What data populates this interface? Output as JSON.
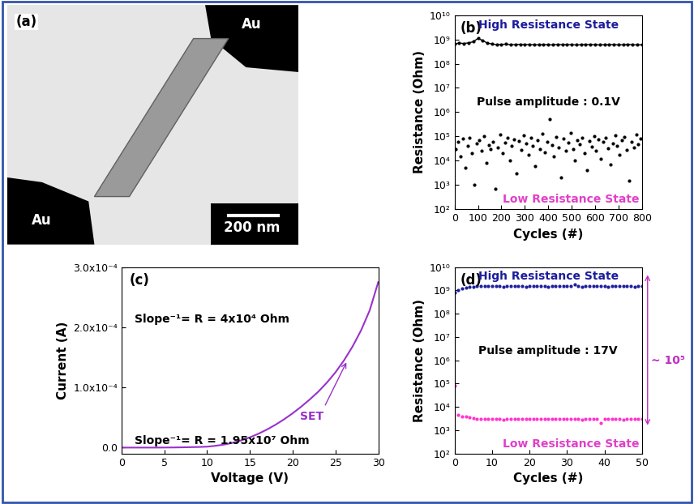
{
  "chart_data": [
    {
      "type": "image",
      "panel_label": "(a)",
      "annotations": [
        "Au",
        "Au",
        "200 nm"
      ]
    },
    {
      "type": "scatter",
      "panel_label": "(b)",
      "x_label": "Cycles (#)",
      "y_label": "Resistance (Ohm)",
      "log": "y",
      "xlim": [
        0,
        800
      ],
      "xticks": [
        0,
        100,
        200,
        300,
        400,
        500,
        600,
        700,
        800
      ],
      "ylim": [
        100,
        10000000000
      ],
      "yticks": [
        {
          "value": 100,
          "label": "10²"
        },
        {
          "value": 1000,
          "label": "10³"
        },
        {
          "value": 10000,
          "label": "10⁴"
        },
        {
          "value": 100000,
          "label": "10⁵"
        },
        {
          "value": 1000000,
          "label": "10⁶"
        },
        {
          "value": 10000000,
          "label": "10⁷"
        },
        {
          "value": 100000000,
          "label": "10⁸"
        },
        {
          "value": 1000000000,
          "label": "10⁹"
        },
        {
          "value": 10000000000,
          "label": "10¹⁰"
        }
      ],
      "annotations": [
        {
          "text": "High Resistance State",
          "color": "#1c1c9c"
        },
        {
          "text": "Pulse amplitude : 0.1V",
          "color": "#000000"
        },
        {
          "text": "Low Resistance State",
          "color": "#e040c8"
        }
      ],
      "series": [
        {
          "color": "#000000",
          "marker": "o",
          "line_style": "solid",
          "x": [
            0,
            20,
            40,
            60,
            80,
            100,
            120,
            140,
            160,
            180,
            200,
            220,
            240,
            260,
            280,
            300,
            320,
            340,
            360,
            380,
            400,
            420,
            440,
            460,
            480,
            500,
            520,
            540,
            560,
            580,
            600,
            620,
            640,
            660,
            680,
            700,
            720,
            740,
            760,
            780,
            800
          ],
          "values": [
            650000000,
            700000000,
            680000000,
            720000000,
            800000000,
            1100000000,
            900000000,
            700000000,
            650000000,
            600000000,
            620000000,
            640000000,
            600000000,
            610000000,
            630000000,
            600000000,
            620000000,
            590000000,
            600000000,
            610000000,
            600000000,
            590000000,
            620000000,
            600000000,
            610000000,
            600000000,
            590000000,
            600000000,
            620000000,
            600000000,
            610000000,
            590000000,
            600000000,
            600000000,
            610000000,
            590000000,
            600000000,
            620000000,
            600000000,
            590000000,
            600000000
          ]
        },
        {
          "color": "#000000",
          "marker": "o",
          "line_style": "none",
          "x": [
            5,
            15,
            25,
            35,
            45,
            55,
            65,
            75,
            85,
            95,
            105,
            115,
            125,
            135,
            145,
            155,
            165,
            175,
            185,
            195,
            205,
            215,
            225,
            235,
            245,
            255,
            265,
            275,
            285,
            295,
            305,
            315,
            325,
            335,
            345,
            355,
            365,
            375,
            385,
            395,
            405,
            415,
            425,
            435,
            445,
            455,
            465,
            475,
            485,
            495,
            505,
            515,
            525,
            535,
            545,
            555,
            565,
            575,
            585,
            595,
            605,
            615,
            625,
            635,
            645,
            655,
            665,
            675,
            685,
            695,
            705,
            715,
            725,
            735,
            745,
            755,
            765,
            775,
            785,
            795
          ],
          "values": [
            30000,
            60000,
            15000,
            80000,
            5000,
            40000,
            90000,
            20000,
            1000,
            50000,
            70000,
            25000,
            100000,
            8000,
            45000,
            30000,
            60000,
            700,
            35000,
            120000,
            20000,
            55000,
            90000,
            10000,
            40000,
            75000,
            3000,
            65000,
            28000,
            110000,
            50000,
            18000,
            85000,
            40000,
            6000,
            70000,
            30000,
            130000,
            22000,
            60000,
            500000,
            45000,
            15000,
            95000,
            35000,
            2000,
            80000,
            25000,
            55000,
            140000,
            30000,
            10000,
            70000,
            48000,
            90000,
            20000,
            4000,
            65000,
            38000,
            100000,
            26000,
            75000,
            12000,
            58000,
            85000,
            33000,
            7000,
            50000,
            110000,
            42000,
            18000,
            68000,
            95000,
            28000,
            1500,
            60000,
            36000,
            120000,
            46000,
            80000
          ]
        }
      ]
    },
    {
      "type": "line",
      "panel_label": "(c)",
      "x_label": "Voltage (V)",
      "y_label": "Current (A)",
      "color": "#9932cc",
      "xlim": [
        0,
        30
      ],
      "xticks": [
        0,
        5,
        10,
        15,
        20,
        25,
        30
      ],
      "ylim": [
        -1e-05,
        0.0003
      ],
      "yticks": [
        {
          "value": 0,
          "label": "0.0"
        },
        {
          "value": 0.0001,
          "label": "1.0x10⁻⁴"
        },
        {
          "value": 0.0002,
          "label": "2.0x10⁻⁴"
        },
        {
          "value": 0.0003,
          "label": "3.0x10⁻⁴"
        }
      ],
      "annotations": [
        {
          "text": "Slope⁻¹= R = 4x10⁴ Ohm",
          "color": "#000000"
        },
        {
          "text": "Slope⁻¹= R = 1.95x10⁷ Ohm",
          "color": "#000000"
        },
        {
          "text": "SET",
          "color": "#9932cc"
        }
      ],
      "x": [
        0,
        1,
        2,
        3,
        4,
        5,
        6,
        7,
        8,
        9,
        10,
        11,
        12,
        13,
        14,
        15,
        16,
        17,
        18,
        19,
        20,
        21,
        22,
        23,
        24,
        25,
        26,
        27,
        28,
        29,
        30
      ],
      "values": [
        0,
        0,
        0,
        0,
        0,
        1e-07,
        2e-07,
        4e-07,
        7e-07,
        1e-06,
        1.5e-06,
        3e-06,
        5e-06,
        8e-06,
        1.2e-05,
        1.7e-05,
        2.3e-05,
        3e-05,
        3.8e-05,
        4.7e-05,
        5.7e-05,
        6.8e-05,
        8e-05,
        9.3e-05,
        0.000108,
        0.000125,
        0.000145,
        0.000168,
        0.000195,
        0.000228,
        0.000275
      ]
    },
    {
      "type": "scatter",
      "panel_label": "(d)",
      "x_label": "Cycles (#)",
      "y_label": "Resistance (Ohm)",
      "log": "y",
      "xlim": [
        0,
        50
      ],
      "xticks": [
        0,
        10,
        20,
        30,
        40,
        50
      ],
      "ylim": [
        100,
        10000000000
      ],
      "yticks": [
        {
          "value": 100,
          "label": "10²"
        },
        {
          "value": 1000,
          "label": "10³"
        },
        {
          "value": 10000,
          "label": "10⁴"
        },
        {
          "value": 100000,
          "label": "10⁵"
        },
        {
          "value": 1000000,
          "label": "10⁶"
        },
        {
          "value": 10000000,
          "label": "10⁷"
        },
        {
          "value": 100000000,
          "label": "10⁸"
        },
        {
          "value": 1000000000,
          "label": "10⁹"
        },
        {
          "value": 10000000000,
          "label": "10¹⁰"
        }
      ],
      "annotations": [
        {
          "text": "High Resistance State",
          "color": "#1c1c9c"
        },
        {
          "text": "Pulse amplitude : 17V",
          "color": "#000000"
        },
        {
          "text": "Low Resistance State",
          "color": "#e040c8"
        },
        {
          "text": "~ 10⁵",
          "color": "#c030c0"
        }
      ],
      "series": [
        {
          "color": "#1c1c9c",
          "marker": "o",
          "line_style": "none",
          "x": [
            0,
            1,
            2,
            3,
            4,
            5,
            6,
            7,
            8,
            9,
            10,
            11,
            12,
            13,
            14,
            15,
            16,
            17,
            18,
            19,
            20,
            21,
            22,
            23,
            24,
            25,
            26,
            27,
            28,
            29,
            30,
            31,
            32,
            33,
            34,
            35,
            36,
            37,
            38,
            39,
            40,
            41,
            42,
            43,
            44,
            45,
            46,
            47,
            48,
            49,
            50
          ],
          "values": [
            800000000,
            1000000000,
            1200000000,
            1300000000,
            1400000000,
            1450000000,
            1500000000,
            1500000000,
            1500000000,
            1500000000,
            1500000000,
            1520000000,
            1500000000,
            1480000000,
            1500000000,
            1500000000,
            1520000000,
            1500000000,
            1500000000,
            1480000000,
            1500000000,
            1500000000,
            1520000000,
            1500000000,
            1500000000,
            1480000000,
            1500000000,
            1500000000,
            1500000000,
            1520000000,
            1500000000,
            1500000000,
            1800000000,
            1500000000,
            1480000000,
            1500000000,
            1500000000,
            1520000000,
            1500000000,
            1500000000,
            1500000000,
            1480000000,
            1500000000,
            1500000000,
            1520000000,
            1500000000,
            1500000000,
            1500000000,
            1480000000,
            1500000000,
            1500000000
          ]
        },
        {
          "color": "#ff33cc",
          "marker": "o",
          "line_style": "none",
          "x": [
            0,
            1,
            2,
            3,
            4,
            5,
            6,
            7,
            8,
            9,
            10,
            11,
            12,
            13,
            14,
            15,
            16,
            17,
            18,
            19,
            20,
            21,
            22,
            23,
            24,
            25,
            26,
            27,
            28,
            29,
            30,
            31,
            32,
            33,
            34,
            35,
            36,
            37,
            38,
            39,
            40,
            41,
            42,
            43,
            44,
            45,
            46,
            47,
            48,
            49,
            50
          ],
          "values": [
            80000,
            4500,
            4000,
            3800,
            3500,
            3300,
            3200,
            3100,
            3000,
            3000,
            3000,
            3100,
            3000,
            2900,
            3000,
            3000,
            3100,
            3200,
            3000,
            3000,
            3100,
            3000,
            3000,
            3100,
            3000,
            3000,
            3200,
            3100,
            3000,
            3000,
            3000,
            3100,
            3000,
            3000,
            2900,
            3000,
            3100,
            3000,
            3000,
            2000,
            3000,
            3000,
            3100,
            3000,
            3000,
            2900,
            3000,
            3000,
            3000,
            3000,
            3000
          ]
        }
      ]
    }
  ]
}
